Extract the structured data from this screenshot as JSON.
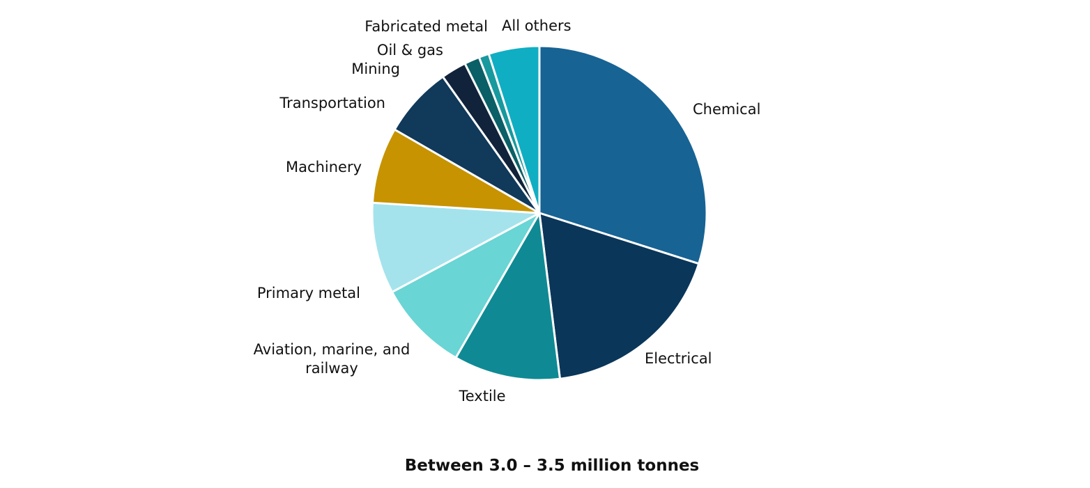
{
  "chart_data": {
    "type": "pie",
    "title": "",
    "footer": "Between 3.0 – 3.5 million tonnes",
    "start_angle_deg": 0,
    "direction": "clockwise",
    "slice_border_color": "#ffffff",
    "slices": [
      {
        "label": "Chemical",
        "value": 30.5,
        "color": "#176394"
      },
      {
        "label": "Electrical",
        "value": 18.5,
        "color": "#0a3659"
      },
      {
        "label": "Textile",
        "value": 10.5,
        "color": "#0f8a94"
      },
      {
        "label": "Aviation, marine, and railway",
        "value": 9.0,
        "color": "#69d5d4"
      },
      {
        "label": "Primary metal",
        "value": 9.0,
        "color": "#a4e3ec"
      },
      {
        "label": "Machinery",
        "value": 7.5,
        "color": "#c79300"
      },
      {
        "label": "Transportation",
        "value": 7.0,
        "color": "#10395a"
      },
      {
        "label": "Mining",
        "value": 2.5,
        "color": "#11233a"
      },
      {
        "label": "Oil & gas",
        "value": 1.5,
        "color": "#0b5f66"
      },
      {
        "label": "Fabricated metal",
        "value": 1.0,
        "color": "#18999e"
      },
      {
        "label": "All others",
        "value": 5.0,
        "color": "#10aec3"
      }
    ]
  }
}
